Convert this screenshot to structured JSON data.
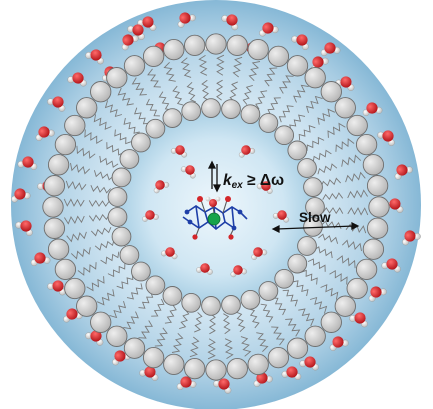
{
  "labels": {
    "exchange_k": "k",
    "exchange_sub": "ex",
    "exchange_rest": " ≥ Δω",
    "slow": "Slow"
  },
  "colors": {
    "background_outer": "#86b8d6",
    "background_inner": "#e4f1f9",
    "lipid_head": "#c8c8c8",
    "lipid_head_stroke": "#6e6e6e",
    "lipid_tail": "#7a7a7a",
    "oxygen": "#d3262a",
    "hydrogen": "#e9e9e9",
    "metal_center": "#16a34a",
    "ligand_blue": "#1e3fa8"
  }
}
